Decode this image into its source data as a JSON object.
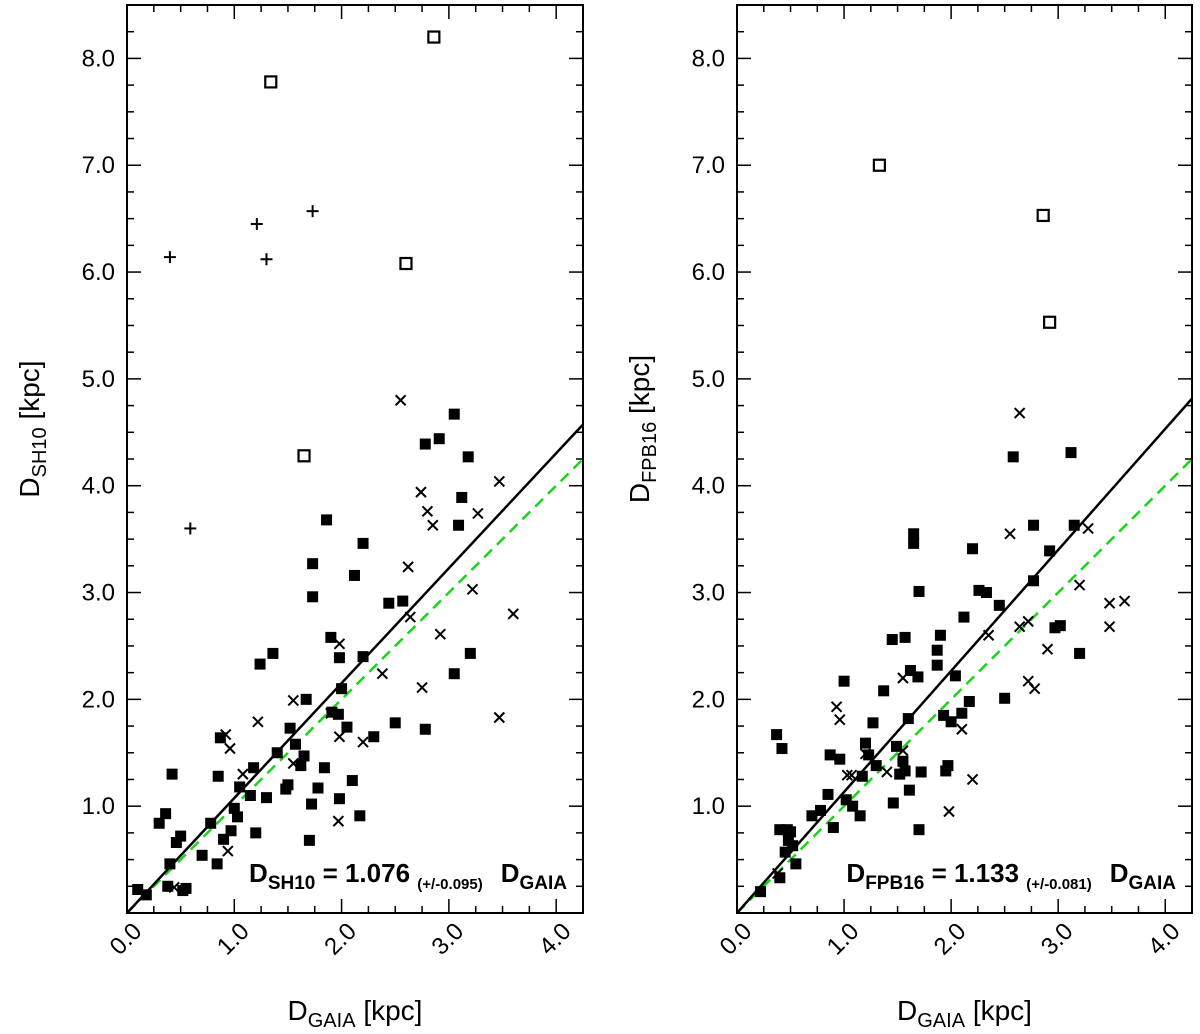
{
  "chart_data": [
    {
      "type": "scatter",
      "id": "left",
      "xlabel": "D",
      "xlabel_sub": "GAIA",
      "xlabel_unit": " [kpc]",
      "ylabel": "D",
      "ylabel_sub": "SH10",
      "ylabel_unit": " [kpc]",
      "xlim": [
        0,
        4.25
      ],
      "ylim": [
        0,
        8.5
      ],
      "x_ticks": [
        "0.0",
        "1.0",
        "2.0",
        "3.0",
        "4.0"
      ],
      "y_ticks": [
        "1.0",
        "2.0",
        "3.0",
        "4.0",
        "5.0",
        "6.0",
        "7.0",
        "8.0"
      ],
      "annotation": {
        "lhs": "D",
        "lhs_sub": "SH10",
        "eq": " = 1.076 ",
        "unc": "(+/-0.095)",
        "rhs": "D",
        "rhs_sub": "GAIA"
      },
      "fit_slope": 1.076,
      "one_to_one_slope": 1.0,
      "series": [
        {
          "name": "filled-squares",
          "marker": "filled-square",
          "points": [
            [
              0.1,
              0.22
            ],
            [
              0.18,
              0.17
            ],
            [
              0.3,
              0.84
            ],
            [
              0.36,
              0.93
            ],
            [
              0.38,
              0.25
            ],
            [
              0.4,
              0.46
            ],
            [
              0.42,
              1.3
            ],
            [
              0.46,
              0.66
            ],
            [
              0.5,
              0.72
            ],
            [
              0.52,
              0.21
            ],
            [
              0.55,
              0.23
            ],
            [
              0.7,
              0.54
            ],
            [
              0.78,
              0.84
            ],
            [
              0.84,
              0.46
            ],
            [
              0.85,
              1.28
            ],
            [
              0.87,
              1.64
            ],
            [
              0.9,
              0.69
            ],
            [
              0.97,
              0.77
            ],
            [
              1.0,
              0.98
            ],
            [
              1.03,
              0.9
            ],
            [
              1.05,
              1.18
            ],
            [
              1.15,
              1.1
            ],
            [
              1.18,
              1.36
            ],
            [
              1.2,
              0.75
            ],
            [
              1.24,
              2.33
            ],
            [
              1.3,
              1.08
            ],
            [
              1.36,
              2.43
            ],
            [
              1.4,
              1.5
            ],
            [
              1.48,
              1.16
            ],
            [
              1.5,
              1.2
            ],
            [
              1.52,
              1.73
            ],
            [
              1.57,
              1.58
            ],
            [
              1.62,
              1.38
            ],
            [
              1.65,
              1.47
            ],
            [
              1.67,
              2.0
            ],
            [
              1.7,
              0.68
            ],
            [
              1.72,
              1.02
            ],
            [
              1.73,
              3.27
            ],
            [
              1.73,
              2.96
            ],
            [
              1.78,
              1.17
            ],
            [
              1.84,
              1.36
            ],
            [
              1.86,
              3.68
            ],
            [
              1.9,
              2.58
            ],
            [
              1.91,
              1.88
            ],
            [
              1.97,
              1.86
            ],
            [
              1.98,
              2.39
            ],
            [
              1.98,
              1.07
            ],
            [
              2.0,
              2.1
            ],
            [
              2.05,
              1.74
            ],
            [
              2.1,
              1.24
            ],
            [
              2.12,
              3.16
            ],
            [
              2.17,
              0.91
            ],
            [
              2.2,
              2.4
            ],
            [
              2.2,
              3.46
            ],
            [
              2.3,
              1.65
            ],
            [
              2.44,
              2.9
            ],
            [
              2.5,
              1.78
            ],
            [
              2.57,
              2.92
            ],
            [
              2.78,
              4.39
            ],
            [
              2.78,
              1.72
            ],
            [
              2.91,
              4.44
            ],
            [
              3.05,
              2.24
            ],
            [
              3.05,
              4.67
            ],
            [
              3.09,
              3.63
            ],
            [
              3.12,
              3.89
            ],
            [
              3.18,
              4.27
            ],
            [
              3.2,
              2.43
            ]
          ]
        },
        {
          "name": "crosses-x",
          "marker": "x",
          "points": [
            [
              0.44,
              0.24
            ],
            [
              0.96,
              1.54
            ],
            [
              0.92,
              1.67
            ],
            [
              0.94,
              0.58
            ],
            [
              1.08,
              1.3
            ],
            [
              1.22,
              1.79
            ],
            [
              1.55,
              1.99
            ],
            [
              1.55,
              1.4
            ],
            [
              1.9,
              1.87
            ],
            [
              1.98,
              1.65
            ],
            [
              1.98,
              2.52
            ],
            [
              1.97,
              0.86
            ],
            [
              2.2,
              1.6
            ],
            [
              2.38,
              2.24
            ],
            [
              2.55,
              4.8
            ],
            [
              2.62,
              3.24
            ],
            [
              2.64,
              2.77
            ],
            [
              2.74,
              3.94
            ],
            [
              2.8,
              3.76
            ],
            [
              2.75,
              2.11
            ],
            [
              2.85,
              3.63
            ],
            [
              2.92,
              2.61
            ],
            [
              3.27,
              3.74
            ],
            [
              3.22,
              3.03
            ],
            [
              3.47,
              4.04
            ],
            [
              3.47,
              1.83
            ],
            [
              3.6,
              2.8
            ]
          ]
        },
        {
          "name": "plus",
          "marker": "plus",
          "points": [
            [
              0.4,
              6.14
            ],
            [
              0.59,
              3.6
            ],
            [
              1.21,
              6.45
            ],
            [
              1.3,
              6.12
            ],
            [
              1.73,
              6.57
            ]
          ]
        },
        {
          "name": "open-squares",
          "marker": "open-square",
          "points": [
            [
              1.34,
              7.78
            ],
            [
              1.65,
              4.28
            ],
            [
              2.6,
              6.08
            ],
            [
              2.86,
              8.2
            ]
          ]
        }
      ]
    },
    {
      "type": "scatter",
      "id": "right",
      "xlabel": "D",
      "xlabel_sub": "GAIA",
      "xlabel_unit": " [kpc]",
      "ylabel": "D",
      "ylabel_sub": "FPB16",
      "ylabel_unit": " [kpc]",
      "xlim": [
        0,
        4.25
      ],
      "ylim": [
        0,
        8.5
      ],
      "x_ticks": [
        "0.0",
        "1.0",
        "2.0",
        "3.0",
        "4.0"
      ],
      "y_ticks": [
        "1.0",
        "2.0",
        "3.0",
        "4.0",
        "5.0",
        "6.0",
        "7.0",
        "8.0"
      ],
      "annotation": {
        "lhs": "D",
        "lhs_sub": "FPB16",
        "eq": " = 1.133 ",
        "unc": "(+/-0.081)",
        "rhs": "D",
        "rhs_sub": "GAIA"
      },
      "fit_slope": 1.133,
      "one_to_one_slope": 1.0,
      "series": [
        {
          "name": "filled-squares",
          "marker": "filled-square",
          "points": [
            [
              0.22,
              0.2
            ],
            [
              0.37,
              1.67
            ],
            [
              0.4,
              0.78
            ],
            [
              0.4,
              0.33
            ],
            [
              0.42,
              1.54
            ],
            [
              0.45,
              0.57
            ],
            [
              0.47,
              0.78
            ],
            [
              0.48,
              0.68
            ],
            [
              0.5,
              0.76
            ],
            [
              0.52,
              0.63
            ],
            [
              0.55,
              0.46
            ],
            [
              0.7,
              0.91
            ],
            [
              0.78,
              0.96
            ],
            [
              0.85,
              1.11
            ],
            [
              0.87,
              1.48
            ],
            [
              0.9,
              0.8
            ],
            [
              0.96,
              1.44
            ],
            [
              1.0,
              2.17
            ],
            [
              1.02,
              1.06
            ],
            [
              1.08,
              1.0
            ],
            [
              1.15,
              0.91
            ],
            [
              1.17,
              1.28
            ],
            [
              1.2,
              1.59
            ],
            [
              1.23,
              1.48
            ],
            [
              1.27,
              1.78
            ],
            [
              1.3,
              1.38
            ],
            [
              1.37,
              2.08
            ],
            [
              1.45,
              2.56
            ],
            [
              1.46,
              1.03
            ],
            [
              1.49,
              1.56
            ],
            [
              1.52,
              1.3
            ],
            [
              1.55,
              1.42
            ],
            [
              1.57,
              1.33
            ],
            [
              1.57,
              2.58
            ],
            [
              1.6,
              1.82
            ],
            [
              1.61,
              1.15
            ],
            [
              1.62,
              2.27
            ],
            [
              1.65,
              3.46
            ],
            [
              1.65,
              3.55
            ],
            [
              1.69,
              2.21
            ],
            [
              1.7,
              0.78
            ],
            [
              1.7,
              3.01
            ],
            [
              1.72,
              1.32
            ],
            [
              1.87,
              2.46
            ],
            [
              1.87,
              2.32
            ],
            [
              1.9,
              2.6
            ],
            [
              1.93,
              1.85
            ],
            [
              1.95,
              1.33
            ],
            [
              1.97,
              1.38
            ],
            [
              2.0,
              1.79
            ],
            [
              2.04,
              2.22
            ],
            [
              2.1,
              1.87
            ],
            [
              2.12,
              2.77
            ],
            [
              2.17,
              1.98
            ],
            [
              2.2,
              3.41
            ],
            [
              2.26,
              3.02
            ],
            [
              2.33,
              3.0
            ],
            [
              2.45,
              2.88
            ],
            [
              2.5,
              2.01
            ],
            [
              2.58,
              4.27
            ],
            [
              2.77,
              3.63
            ],
            [
              2.77,
              3.11
            ],
            [
              2.92,
              3.39
            ],
            [
              2.97,
              2.67
            ],
            [
              3.02,
              2.69
            ],
            [
              3.12,
              4.31
            ],
            [
              3.15,
              3.63
            ],
            [
              3.2,
              2.43
            ]
          ]
        },
        {
          "name": "crosses-x",
          "marker": "x",
          "points": [
            [
              0.38,
              0.37
            ],
            [
              0.93,
              1.93
            ],
            [
              0.96,
              1.81
            ],
            [
              1.03,
              1.29
            ],
            [
              1.07,
              1.29
            ],
            [
              1.2,
              1.49
            ],
            [
              1.4,
              1.32
            ],
            [
              1.55,
              2.2
            ],
            [
              1.55,
              1.52
            ],
            [
              1.98,
              0.95
            ],
            [
              2.1,
              1.72
            ],
            [
              2.2,
              1.25
            ],
            [
              2.35,
              2.6
            ],
            [
              2.55,
              3.55
            ],
            [
              2.64,
              4.68
            ],
            [
              2.64,
              2.68
            ],
            [
              2.72,
              2.73
            ],
            [
              2.72,
              2.17
            ],
            [
              2.78,
              2.1
            ],
            [
              2.9,
              2.47
            ],
            [
              3.2,
              3.07
            ],
            [
              3.28,
              3.6
            ],
            [
              3.48,
              2.9
            ],
            [
              3.48,
              2.68
            ],
            [
              3.62,
              2.92
            ]
          ]
        },
        {
          "name": "open-squares",
          "marker": "open-square",
          "points": [
            [
              1.33,
              7.0
            ],
            [
              2.86,
              6.53
            ],
            [
              2.92,
              5.53
            ]
          ]
        }
      ]
    }
  ],
  "colors": {
    "fit_line": "#000000",
    "one_to_one_line": "#19d419",
    "axis": "#000000"
  }
}
